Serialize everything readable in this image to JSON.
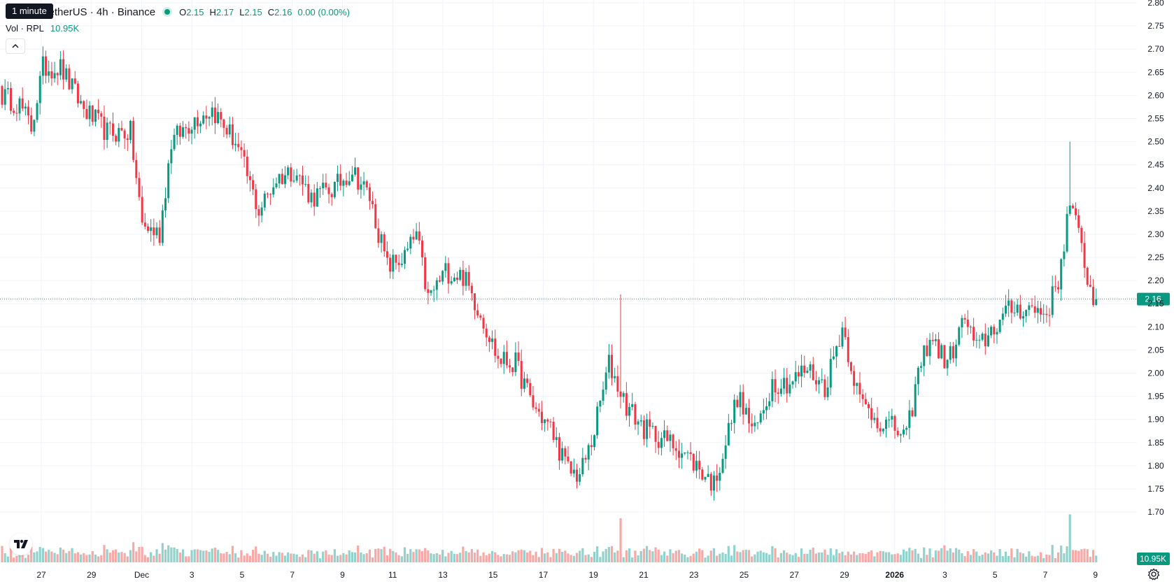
{
  "header": {
    "tooltip": "1 minute",
    "symbol_title": "TetherUS · 4h · Binance",
    "ohlc": {
      "o_label": "O",
      "o_value": "2.15",
      "h_label": "H",
      "h_value": "2.17",
      "l_label": "L",
      "l_value": "2.15",
      "c_label": "C",
      "c_value": "2.16",
      "change": "0.00 (0.00%)"
    },
    "volume_label": "Vol · RPL",
    "volume_value": "10.95K"
  },
  "colors": {
    "up": "#089981",
    "down": "#f23645",
    "up_volume": "#92d2cc",
    "down_volume": "#f7a9a7",
    "grid": "#f0f3fa",
    "axis_text": "#131722",
    "price_line": "#089981"
  },
  "icons": {
    "collapse": "chevron-up-icon",
    "logo": "tradingview-logo-icon",
    "settings": "gear-icon"
  },
  "chart_data": {
    "type": "candlestick",
    "interval": "4h",
    "y_axis": {
      "range": [
        1.65,
        2.8
      ],
      "ticks": [
        "1.70",
        "1.75",
        "1.80",
        "1.85",
        "1.90",
        "1.95",
        "2.00",
        "2.05",
        "2.10",
        "2.15",
        "2.20",
        "2.25",
        "2.30",
        "2.35",
        "2.40",
        "2.45",
        "2.50",
        "2.55",
        "2.60",
        "2.65",
        "2.70",
        "2.75",
        "2.80"
      ]
    },
    "x_axis": {
      "ticks": [
        {
          "label": "27",
          "bold": false
        },
        {
          "label": "29",
          "bold": false
        },
        {
          "label": "Dec",
          "bold": false
        },
        {
          "label": "3",
          "bold": false
        },
        {
          "label": "5",
          "bold": false
        },
        {
          "label": "7",
          "bold": false
        },
        {
          "label": "9",
          "bold": false
        },
        {
          "label": "11",
          "bold": false
        },
        {
          "label": "13",
          "bold": false
        },
        {
          "label": "15",
          "bold": false
        },
        {
          "label": "17",
          "bold": false
        },
        {
          "label": "19",
          "bold": false
        },
        {
          "label": "21",
          "bold": false
        },
        {
          "label": "23",
          "bold": false
        },
        {
          "label": "25",
          "bold": false
        },
        {
          "label": "27",
          "bold": false
        },
        {
          "label": "29",
          "bold": false
        },
        {
          "label": "2026",
          "bold": true
        },
        {
          "label": "3",
          "bold": false
        },
        {
          "label": "5",
          "bold": false
        },
        {
          "label": "7",
          "bold": false
        },
        {
          "label": "9",
          "bold": false
        }
      ]
    },
    "last_price": "2.16",
    "last_volume": "10.95K",
    "anchors": [
      {
        "bar": 0,
        "price": 2.6
      },
      {
        "bar": 6,
        "price": 2.58
      },
      {
        "bar": 10,
        "price": 2.53
      },
      {
        "bar": 14,
        "price": 2.66
      },
      {
        "bar": 20,
        "price": 2.66
      },
      {
        "bar": 28,
        "price": 2.57
      },
      {
        "bar": 36,
        "price": 2.52
      },
      {
        "bar": 44,
        "price": 2.52
      },
      {
        "bar": 48,
        "price": 2.32
      },
      {
        "bar": 54,
        "price": 2.3
      },
      {
        "bar": 58,
        "price": 2.5
      },
      {
        "bar": 66,
        "price": 2.55
      },
      {
        "bar": 72,
        "price": 2.57
      },
      {
        "bar": 80,
        "price": 2.5
      },
      {
        "bar": 88,
        "price": 2.35
      },
      {
        "bar": 94,
        "price": 2.42
      },
      {
        "bar": 100,
        "price": 2.44
      },
      {
        "bar": 106,
        "price": 2.38
      },
      {
        "bar": 114,
        "price": 2.4
      },
      {
        "bar": 120,
        "price": 2.44
      },
      {
        "bar": 126,
        "price": 2.38
      },
      {
        "bar": 132,
        "price": 2.23
      },
      {
        "bar": 138,
        "price": 2.25
      },
      {
        "bar": 142,
        "price": 2.3
      },
      {
        "bar": 146,
        "price": 2.16
      },
      {
        "bar": 152,
        "price": 2.22
      },
      {
        "bar": 158,
        "price": 2.21
      },
      {
        "bar": 164,
        "price": 2.13
      },
      {
        "bar": 170,
        "price": 2.03
      },
      {
        "bar": 176,
        "price": 2.02
      },
      {
        "bar": 182,
        "price": 1.93
      },
      {
        "bar": 188,
        "price": 1.88
      },
      {
        "bar": 194,
        "price": 1.79
      },
      {
        "bar": 198,
        "price": 1.78
      },
      {
        "bar": 202,
        "price": 1.85
      },
      {
        "bar": 208,
        "price": 2.02
      },
      {
        "bar": 214,
        "price": 1.93
      },
      {
        "bar": 220,
        "price": 1.88
      },
      {
        "bar": 226,
        "price": 1.86
      },
      {
        "bar": 232,
        "price": 1.84
      },
      {
        "bar": 238,
        "price": 1.8
      },
      {
        "bar": 244,
        "price": 1.76
      },
      {
        "bar": 248,
        "price": 1.85
      },
      {
        "bar": 252,
        "price": 1.95
      },
      {
        "bar": 258,
        "price": 1.87
      },
      {
        "bar": 264,
        "price": 1.98
      },
      {
        "bar": 270,
        "price": 1.98
      },
      {
        "bar": 276,
        "price": 2.01
      },
      {
        "bar": 282,
        "price": 1.97
      },
      {
        "bar": 288,
        "price": 2.1
      },
      {
        "bar": 294,
        "price": 1.94
      },
      {
        "bar": 300,
        "price": 1.9
      },
      {
        "bar": 306,
        "price": 1.88
      },
      {
        "bar": 310,
        "price": 1.86
      },
      {
        "bar": 314,
        "price": 2.0
      },
      {
        "bar": 318,
        "price": 2.08
      },
      {
        "bar": 324,
        "price": 2.02
      },
      {
        "bar": 330,
        "price": 2.12
      },
      {
        "bar": 334,
        "price": 2.05
      },
      {
        "bar": 340,
        "price": 2.1
      },
      {
        "bar": 346,
        "price": 2.14
      },
      {
        "bar": 352,
        "price": 2.14
      },
      {
        "bar": 358,
        "price": 2.13
      },
      {
        "bar": 362,
        "price": 2.2
      },
      {
        "bar": 366,
        "price": 2.37
      },
      {
        "bar": 370,
        "price": 2.27
      },
      {
        "bar": 374,
        "price": 2.15
      },
      {
        "bar": 375,
        "price": 2.16
      }
    ],
    "spikes": [
      {
        "bar": 212,
        "high": 2.17,
        "volume": 4.5
      },
      {
        "bar": 366,
        "high": 2.5,
        "volume": 4.9
      }
    ]
  }
}
